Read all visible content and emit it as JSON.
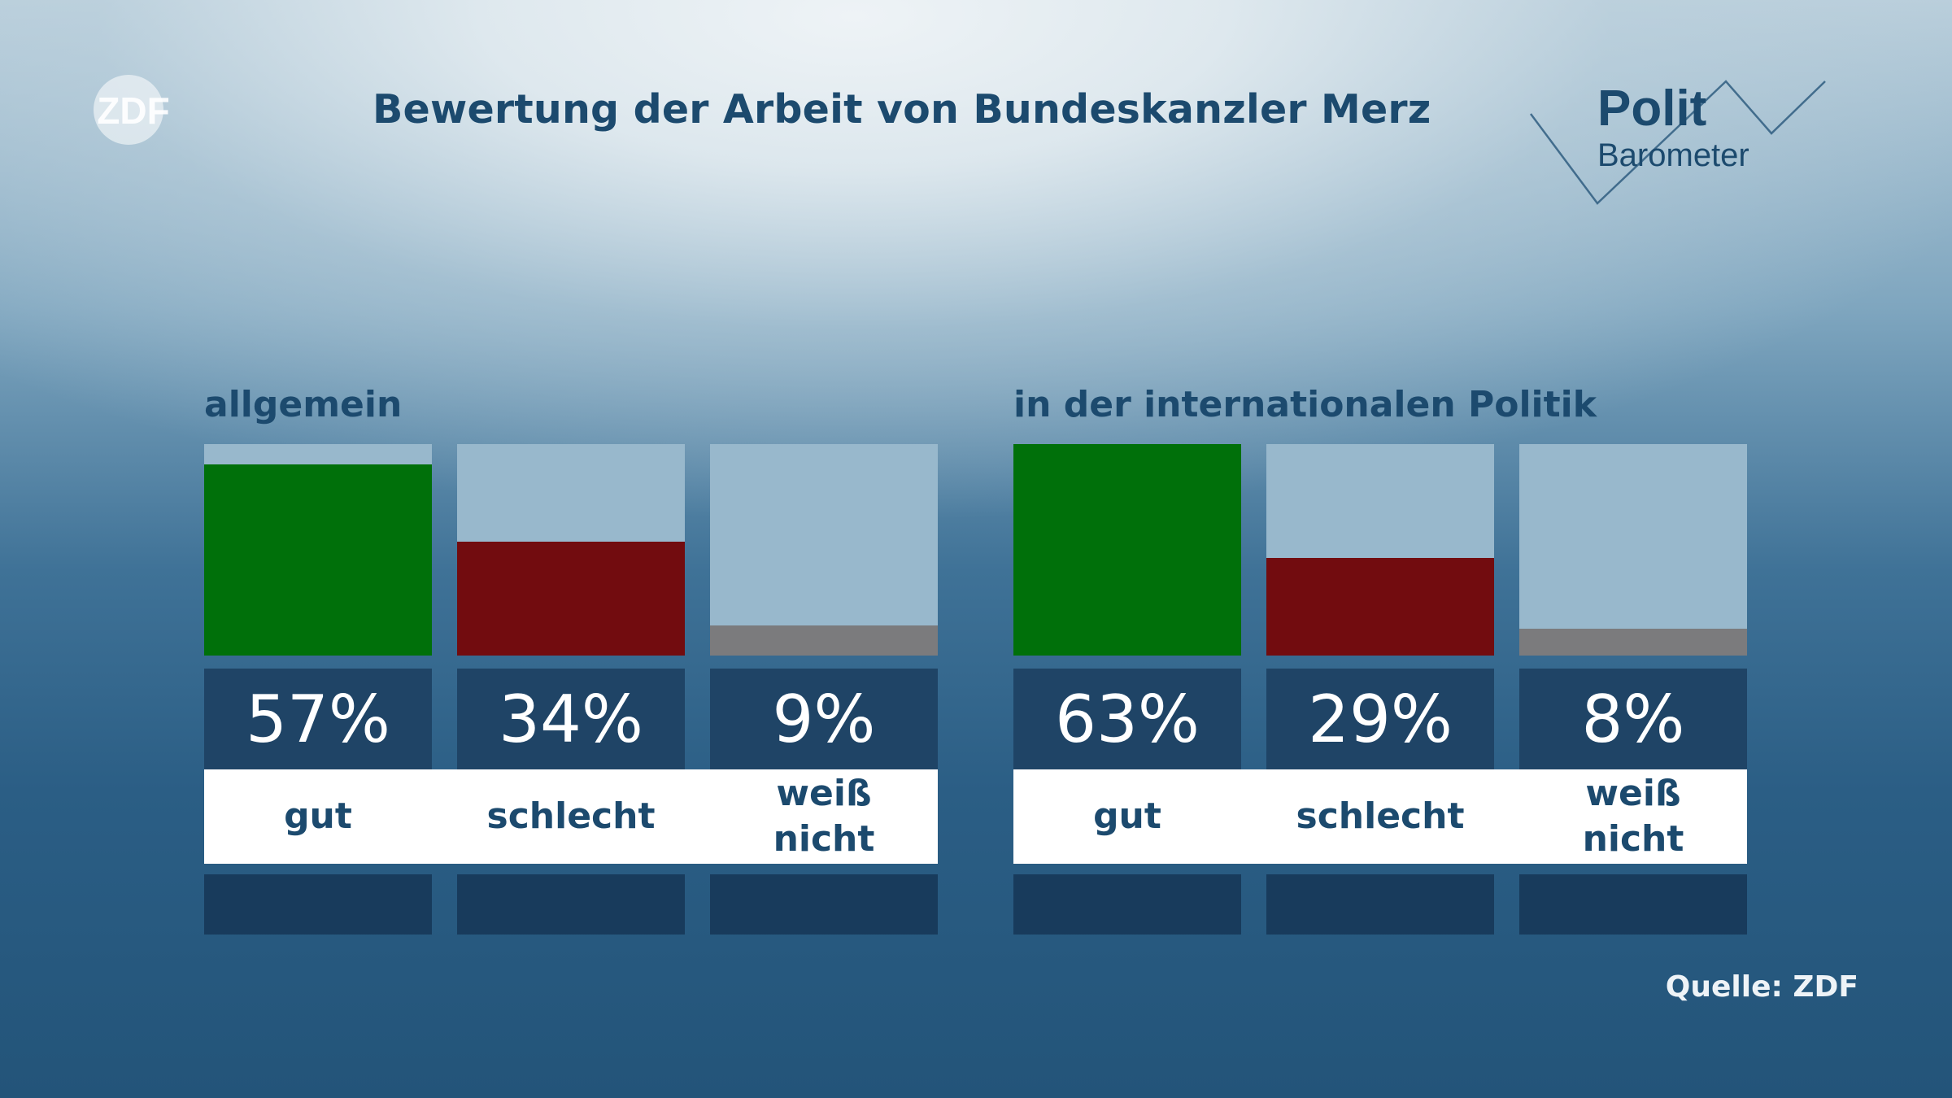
{
  "branding": {
    "zdf_logo_text": "ZDF",
    "politbarometer_line1": "Polit",
    "politbarometer_line2": "Barometer"
  },
  "source_label": "Quelle: ZDF",
  "colors": {
    "gut": "#00700a",
    "schlecht": "#720c0f",
    "weiss_nicht": "#7b7b7d",
    "track": "#98b8cc",
    "value_box": "#1f4466",
    "title": "#1c4a6e"
  },
  "chart_data": {
    "type": "bar",
    "title": "Bewertung der Arbeit von Bundeskanzler Merz",
    "ylim": [
      0,
      63
    ],
    "panels": [
      {
        "heading": "allgemein",
        "categories": [
          "gut",
          "schlecht",
          "weiß\nnicht"
        ],
        "values": [
          57,
          34,
          9
        ],
        "value_labels": [
          "57%",
          "34%",
          "9%"
        ]
      },
      {
        "heading": "in der internationalen Politik",
        "categories": [
          "gut",
          "schlecht",
          "weiß\nnicht"
        ],
        "values": [
          63,
          29,
          8
        ],
        "value_labels": [
          "63%",
          "29%",
          "8%"
        ]
      }
    ]
  }
}
